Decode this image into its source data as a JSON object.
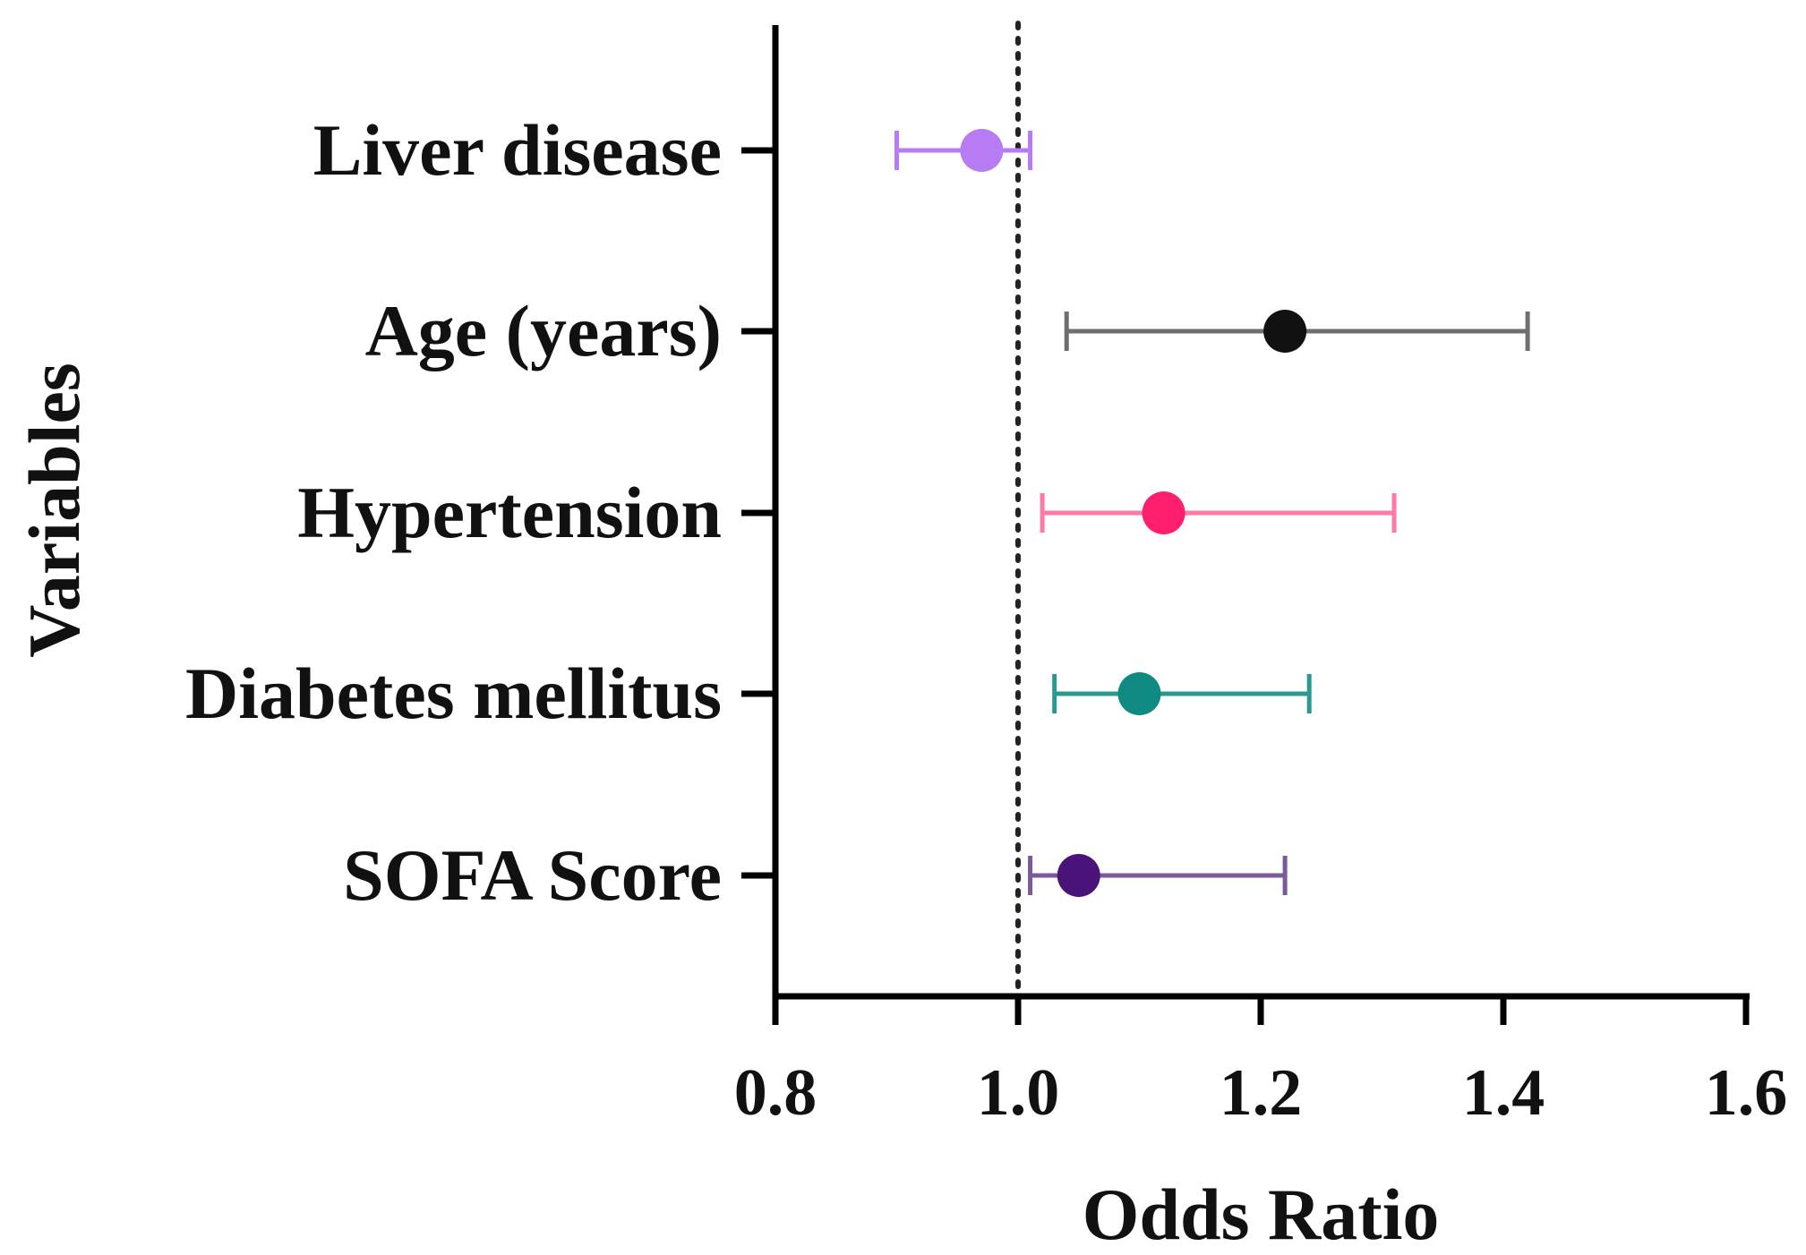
{
  "chart_data": {
    "type": "forest",
    "title": "",
    "xlabel": "Odds Ratio",
    "ylabel": "Variables",
    "xlim": [
      0.8,
      1.6
    ],
    "xticks": [
      "0.8",
      "1.0",
      "1.2",
      "1.4",
      "1.6"
    ],
    "reference_line": 1.0,
    "grid": false,
    "series": [
      {
        "name": "Liver disease",
        "or": 0.97,
        "ci_low": 0.9,
        "ci_high": 1.01,
        "color": "#b77cf3"
      },
      {
        "name": "Age (years)",
        "or": 1.22,
        "ci_low": 1.04,
        "ci_high": 1.42,
        "color": "#111111",
        "whisker_color": "#6f6f6f"
      },
      {
        "name": "Hypertension",
        "or": 1.12,
        "ci_low": 1.02,
        "ci_high": 1.31,
        "color": "#ff1f6e",
        "whisker_color": "#ff7aa6"
      },
      {
        "name": "Diabetes mellitus",
        "or": 1.1,
        "ci_low": 1.03,
        "ci_high": 1.24,
        "color": "#0e8a80",
        "whisker_color": "#2a9a90"
      },
      {
        "name": "SOFA Score",
        "or": 1.05,
        "ci_low": 1.01,
        "ci_high": 1.22,
        "color": "#4a137a",
        "whisker_color": "#7a5a98"
      }
    ]
  }
}
